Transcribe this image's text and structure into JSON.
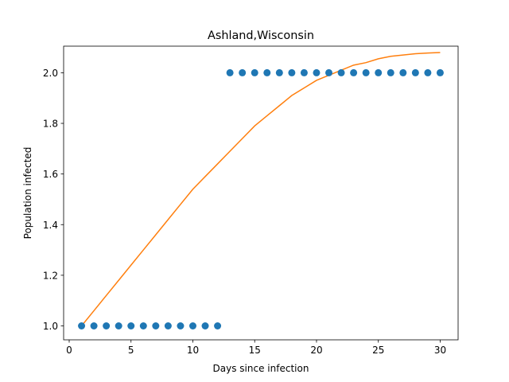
{
  "chart_data": {
    "type": "scatter",
    "title": "Ashland,Wisconsin",
    "xlabel": "Days since infection",
    "ylabel": "Population infected",
    "xlim": [
      -0.45,
      31.45
    ],
    "ylim": [
      0.945,
      2.105
    ],
    "xticks": [
      0,
      5,
      10,
      15,
      20,
      25,
      30
    ],
    "yticks": [
      1.0,
      1.2,
      1.4,
      1.6,
      1.8,
      2.0
    ],
    "ytick_labels": [
      "1.0",
      "1.2",
      "1.4",
      "1.6",
      "1.8",
      "2.0"
    ],
    "grid": false,
    "series": [
      {
        "kind": "scatter",
        "color": "#1f77b4",
        "x": [
          1,
          2,
          3,
          4,
          5,
          6,
          7,
          8,
          9,
          10,
          11,
          12,
          13,
          14,
          15,
          16,
          17,
          18,
          19,
          20,
          21,
          22,
          23,
          24,
          25,
          26,
          27,
          28,
          29,
          30
        ],
        "y": [
          1,
          1,
          1,
          1,
          1,
          1,
          1,
          1,
          1,
          1,
          1,
          1,
          2,
          2,
          2,
          2,
          2,
          2,
          2,
          2,
          2,
          2,
          2,
          2,
          2,
          2,
          2,
          2,
          2,
          2
        ]
      },
      {
        "kind": "line",
        "color": "#ff7f0e",
        "x": [
          1,
          2,
          3,
          4,
          5,
          6,
          7,
          8,
          9,
          10,
          11,
          12,
          13,
          14,
          15,
          16,
          17,
          18,
          19,
          20,
          21,
          22,
          23,
          24,
          25,
          26,
          27,
          28,
          29,
          30
        ],
        "y": [
          1.0,
          1.06,
          1.12,
          1.18,
          1.24,
          1.3,
          1.36,
          1.42,
          1.48,
          1.54,
          1.59,
          1.64,
          1.69,
          1.74,
          1.79,
          1.83,
          1.87,
          1.91,
          1.94,
          1.97,
          1.99,
          2.01,
          2.03,
          2.04,
          2.055,
          2.065,
          2.07,
          2.075,
          2.078,
          2.08
        ]
      }
    ]
  }
}
